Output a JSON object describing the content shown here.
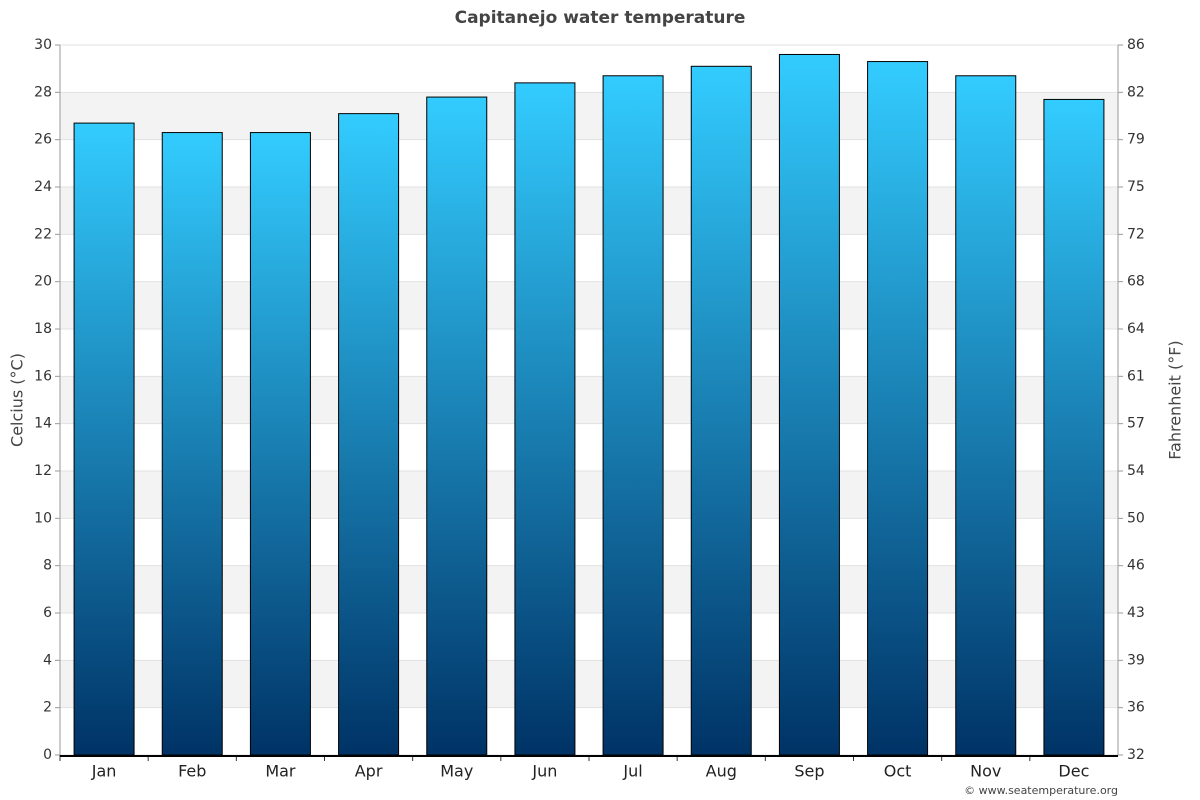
{
  "chart_data": {
    "type": "bar",
    "title": "Capitanejo water temperature",
    "y_label": "Celcius (°C)",
    "y2_label": "Fahrenheit (°F)",
    "credit": "© www.seatemperature.org",
    "categories": [
      "Jan",
      "Feb",
      "Mar",
      "Apr",
      "May",
      "Jun",
      "Jul",
      "Aug",
      "Sep",
      "Oct",
      "Nov",
      "Dec"
    ],
    "values": [
      26.7,
      26.3,
      26.3,
      27.1,
      27.8,
      28.4,
      28.7,
      29.1,
      29.6,
      29.3,
      28.7,
      27.7
    ],
    "color_top": "#33ccff",
    "color_bottom": "#003366",
    "ylim": [
      0,
      30
    ],
    "yticks": [
      0,
      2,
      4,
      6,
      8,
      10,
      12,
      14,
      16,
      18,
      20,
      22,
      24,
      26,
      28,
      30
    ],
    "y2lim": [
      32,
      86
    ],
    "y2ticks": [
      32,
      {
        "value": 35.6,
        "label": "36"
      },
      {
        "value": 39.2,
        "label": "39"
      },
      {
        "value": 42.8,
        "label": "43"
      },
      {
        "value": 46.4,
        "label": "46"
      },
      50,
      {
        "value": 53.6,
        "label": "54"
      },
      {
        "value": 57.2,
        "label": "57"
      },
      {
        "value": 60.8,
        "label": "61"
      },
      {
        "value": 64.4,
        "label": "64"
      },
      68,
      {
        "value": 71.6,
        "label": "72"
      },
      {
        "value": 75.2,
        "label": "75"
      },
      {
        "value": 78.8,
        "label": "79"
      },
      {
        "value": 82.4,
        "label": "82"
      },
      86
    ],
    "grid": true
  }
}
